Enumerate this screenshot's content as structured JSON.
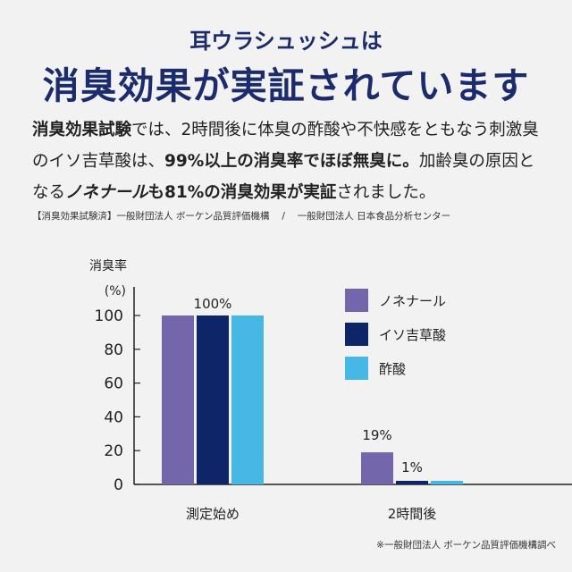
{
  "header": {
    "subtitle": "耳ウラシュッシュは",
    "title": "消臭効果が実証されています"
  },
  "body_text": [
    {
      "text": "消臭効果試験",
      "bold": true
    },
    {
      "text": "では、2時間後に体臭の酢酸や不快感をともなう刺激臭",
      "bold": false
    },
    {
      "text": "のイソ吉草酸は、",
      "bold": false
    },
    {
      "text": "99%以上の消臭率でほぼ無臭に。",
      "bold": true
    },
    {
      "text": "加齢臭の原因と",
      "bold": false
    },
    {
      "text": "なる",
      "bold": false
    },
    {
      "text": "ノネナール",
      "bold": true
    },
    {
      "text": "も81%の消臭効果が実証",
      "bold": true
    },
    {
      "text": "されました。",
      "bold": false
    }
  ],
  "source_note": "【消臭効果試験済】一般財団法人 ボーケン品質評価機構　 /　 一般財団法人 日本食品分析センター",
  "footnote": "※一般財団法人 ボーケン品質評価機構調べ",
  "chart_data": {
    "type": "bar",
    "ylabel": "消臭率",
    "yunit": "(%)",
    "ylim": [
      0,
      100
    ],
    "yticks": [
      0,
      20,
      40,
      60,
      80,
      100
    ],
    "categories": [
      "測定始め",
      "2時間後"
    ],
    "series": [
      {
        "name": "ノネナール",
        "values": [
          100,
          19
        ],
        "color": "#7466ab"
      },
      {
        "name": "イソ吉草酸",
        "values": [
          100,
          1
        ],
        "color": "#0e2668"
      },
      {
        "name": "酢酸",
        "values": [
          100,
          1
        ],
        "color": "#47b7e5"
      }
    ],
    "data_labels": [
      {
        "category": "測定始め",
        "text": "100%"
      },
      {
        "category": "2時間後",
        "series": "ノネナール",
        "text": "19%"
      },
      {
        "category": "2時間後",
        "series": "イソ吉草酸",
        "text": "1%"
      }
    ],
    "legend": "top-right",
    "grid": false
  }
}
